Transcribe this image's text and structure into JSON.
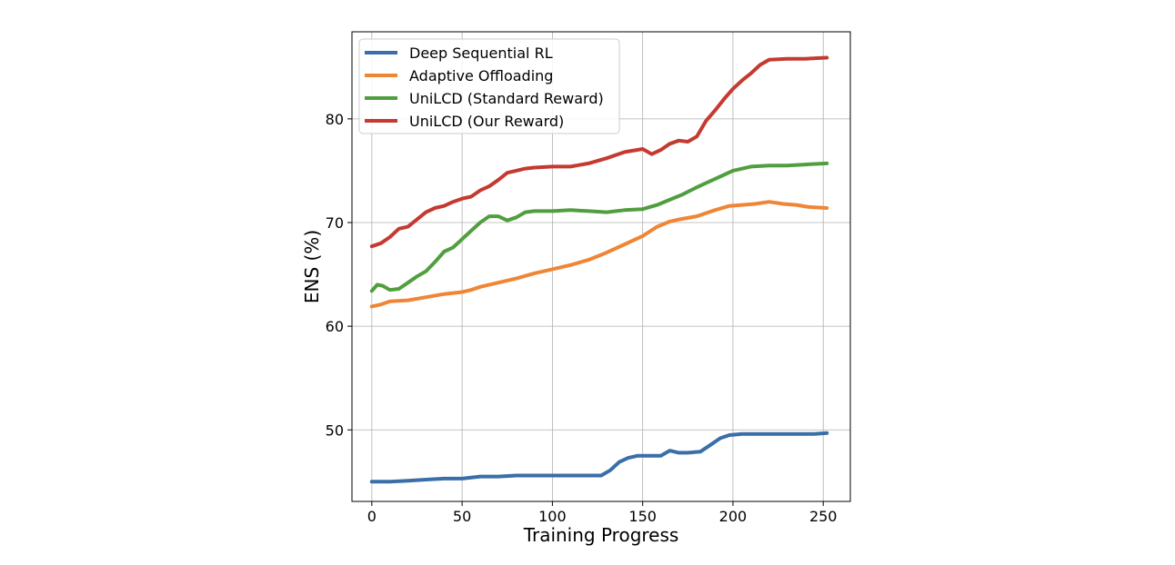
{
  "chart_data": {
    "type": "line",
    "xlabel": "Training Progress",
    "ylabel": "ENS (%)",
    "xlim": [
      -11,
      265
    ],
    "ylim": [
      43.1,
      88.4
    ],
    "xticks": [
      0,
      50,
      100,
      150,
      200,
      250
    ],
    "yticks": [
      50,
      60,
      70,
      80
    ],
    "grid": true,
    "legend_position": "top-left",
    "series": [
      {
        "name": "Deep Sequential RL",
        "color": "#3a6ea8",
        "points": [
          [
            0,
            45.0
          ],
          [
            10,
            45.0
          ],
          [
            20,
            45.1
          ],
          [
            30,
            45.2
          ],
          [
            40,
            45.3
          ],
          [
            50,
            45.3
          ],
          [
            60,
            45.5
          ],
          [
            70,
            45.5
          ],
          [
            80,
            45.6
          ],
          [
            90,
            45.6
          ],
          [
            100,
            45.6
          ],
          [
            110,
            45.6
          ],
          [
            120,
            45.6
          ],
          [
            127,
            45.6
          ],
          [
            132,
            46.1
          ],
          [
            137,
            46.9
          ],
          [
            142,
            47.3
          ],
          [
            147,
            47.5
          ],
          [
            152,
            47.5
          ],
          [
            160,
            47.5
          ],
          [
            165,
            48.0
          ],
          [
            170,
            47.8
          ],
          [
            175,
            47.8
          ],
          [
            182,
            47.9
          ],
          [
            188,
            48.6
          ],
          [
            193,
            49.2
          ],
          [
            198,
            49.5
          ],
          [
            205,
            49.6
          ],
          [
            215,
            49.6
          ],
          [
            225,
            49.6
          ],
          [
            235,
            49.6
          ],
          [
            245,
            49.6
          ],
          [
            252,
            49.7
          ]
        ]
      },
      {
        "name": "Adaptive Offloading",
        "color": "#ef8636",
        "points": [
          [
            0,
            61.9
          ],
          [
            5,
            62.1
          ],
          [
            10,
            62.4
          ],
          [
            20,
            62.5
          ],
          [
            30,
            62.8
          ],
          [
            40,
            63.1
          ],
          [
            50,
            63.3
          ],
          [
            55,
            63.5
          ],
          [
            60,
            63.8
          ],
          [
            70,
            64.2
          ],
          [
            80,
            64.6
          ],
          [
            90,
            65.1
          ],
          [
            100,
            65.5
          ],
          [
            110,
            65.9
          ],
          [
            120,
            66.4
          ],
          [
            130,
            67.1
          ],
          [
            140,
            67.9
          ],
          [
            150,
            68.7
          ],
          [
            158,
            69.6
          ],
          [
            165,
            70.1
          ],
          [
            170,
            70.3
          ],
          [
            180,
            70.6
          ],
          [
            190,
            71.2
          ],
          [
            198,
            71.6
          ],
          [
            205,
            71.7
          ],
          [
            212,
            71.8
          ],
          [
            220,
            72.0
          ],
          [
            228,
            71.8
          ],
          [
            235,
            71.7
          ],
          [
            242,
            71.5
          ],
          [
            252,
            71.4
          ]
        ]
      },
      {
        "name": "UniLCD (Standard Reward)",
        "color": "#519e3e",
        "points": [
          [
            0,
            63.4
          ],
          [
            3,
            64.0
          ],
          [
            6,
            63.9
          ],
          [
            10,
            63.5
          ],
          [
            15,
            63.6
          ],
          [
            20,
            64.2
          ],
          [
            25,
            64.8
          ],
          [
            30,
            65.3
          ],
          [
            35,
            66.2
          ],
          [
            40,
            67.2
          ],
          [
            45,
            67.6
          ],
          [
            50,
            68.4
          ],
          [
            55,
            69.2
          ],
          [
            60,
            70.0
          ],
          [
            65,
            70.6
          ],
          [
            70,
            70.6
          ],
          [
            75,
            70.2
          ],
          [
            80,
            70.5
          ],
          [
            85,
            71.0
          ],
          [
            90,
            71.1
          ],
          [
            100,
            71.1
          ],
          [
            110,
            71.2
          ],
          [
            120,
            71.1
          ],
          [
            130,
            71.0
          ],
          [
            140,
            71.2
          ],
          [
            150,
            71.3
          ],
          [
            158,
            71.7
          ],
          [
            165,
            72.2
          ],
          [
            172,
            72.7
          ],
          [
            180,
            73.4
          ],
          [
            185,
            73.8
          ],
          [
            190,
            74.2
          ],
          [
            195,
            74.6
          ],
          [
            200,
            75.0
          ],
          [
            210,
            75.4
          ],
          [
            220,
            75.5
          ],
          [
            230,
            75.5
          ],
          [
            240,
            75.6
          ],
          [
            252,
            75.7
          ]
        ]
      },
      {
        "name": "UniLCD (Our Reward)",
        "color": "#c43a31",
        "points": [
          [
            0,
            67.7
          ],
          [
            5,
            68.0
          ],
          [
            10,
            68.6
          ],
          [
            15,
            69.4
          ],
          [
            20,
            69.6
          ],
          [
            25,
            70.3
          ],
          [
            30,
            71.0
          ],
          [
            35,
            71.4
          ],
          [
            40,
            71.6
          ],
          [
            45,
            72.0
          ],
          [
            50,
            72.3
          ],
          [
            55,
            72.5
          ],
          [
            60,
            73.1
          ],
          [
            65,
            73.5
          ],
          [
            70,
            74.1
          ],
          [
            75,
            74.8
          ],
          [
            80,
            75.0
          ],
          [
            85,
            75.2
          ],
          [
            90,
            75.3
          ],
          [
            100,
            75.4
          ],
          [
            110,
            75.4
          ],
          [
            120,
            75.7
          ],
          [
            130,
            76.2
          ],
          [
            140,
            76.8
          ],
          [
            150,
            77.1
          ],
          [
            155,
            76.6
          ],
          [
            160,
            77.0
          ],
          [
            165,
            77.6
          ],
          [
            170,
            77.9
          ],
          [
            175,
            77.8
          ],
          [
            180,
            78.3
          ],
          [
            185,
            79.8
          ],
          [
            190,
            80.8
          ],
          [
            195,
            81.9
          ],
          [
            200,
            82.9
          ],
          [
            205,
            83.7
          ],
          [
            210,
            84.4
          ],
          [
            215,
            85.2
          ],
          [
            220,
            85.7
          ],
          [
            230,
            85.8
          ],
          [
            240,
            85.8
          ],
          [
            252,
            85.9
          ]
        ]
      }
    ]
  }
}
